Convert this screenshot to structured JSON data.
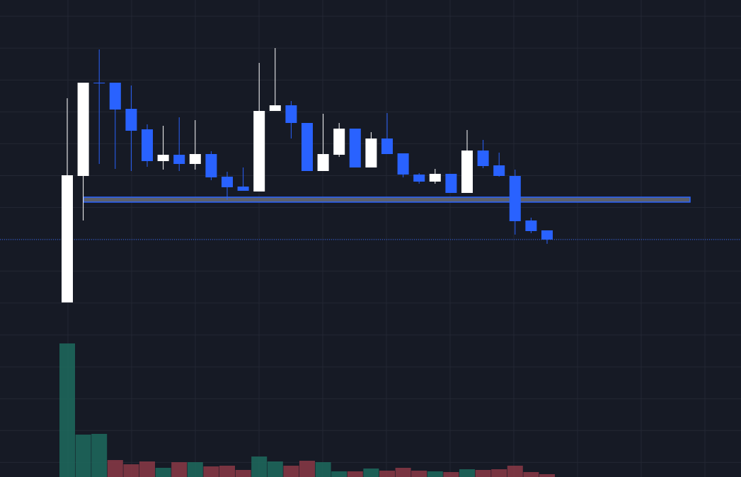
{
  "chart_data": {
    "type": "candlestick",
    "open": [
      2.2,
      20.1,
      33.3,
      33.3,
      29.6,
      26.7,
      22.2,
      23.1,
      21.8,
      23.2,
      20.0,
      18.6,
      17.9,
      29.3,
      30.1,
      27.6,
      20.8,
      23.1,
      26.8,
      21.3,
      25.4,
      23.3,
      20.3,
      19.3,
      20.4,
      17.7,
      23.7,
      21.6,
      20.1,
      13.8,
      12.4
    ],
    "high": [
      31.1,
      33.3,
      38.0,
      33.3,
      32.9,
      27.4,
      27.2,
      28.4,
      28.0,
      23.6,
      20.7,
      21.3,
      36.1,
      38.2,
      30.7,
      27.6,
      28.9,
      27.6,
      26.8,
      26.3,
      29.0,
      23.3,
      20.5,
      21.1,
      20.4,
      26.6,
      25.2,
      23.4,
      21.0,
      14.2,
      12.4
    ],
    "low": [
      2.2,
      13.8,
      21.8,
      21.1,
      20.8,
      21.4,
      21.0,
      20.8,
      21.0,
      19.5,
      16.7,
      18.0,
      17.9,
      29.3,
      25.4,
      20.8,
      20.8,
      22.8,
      21.3,
      21.3,
      23.2,
      19.9,
      19.0,
      19.0,
      17.7,
      17.7,
      21.2,
      20.0,
      11.8,
      12.0,
      10.5
    ],
    "close": [
      20.2,
      33.3,
      33.2,
      29.5,
      26.5,
      22.2,
      23.1,
      21.8,
      23.2,
      19.9,
      18.5,
      18.0,
      29.3,
      30.1,
      27.6,
      20.8,
      23.2,
      26.8,
      21.3,
      25.4,
      23.2,
      20.3,
      19.3,
      20.4,
      17.7,
      23.7,
      21.5,
      20.1,
      13.7,
      12.3,
      11.1
    ],
    "volume": [
      189,
      60,
      61,
      24,
      18,
      22,
      13,
      21,
      21,
      15,
      16,
      10,
      29,
      22,
      16,
      23,
      21,
      8,
      8,
      12,
      9,
      13,
      9,
      8,
      7,
      11,
      10,
      11,
      16,
      7,
      4
    ],
    "volume_colors": [
      "#1d6b5e",
      "#1d6b5e",
      "#1d6b5e",
      "#8b3a47",
      "#8b3a47",
      "#8b3a47",
      "#1d6b5e",
      "#8b3a47",
      "#1d6b5e",
      "#8b3a47",
      "#8b3a47",
      "#8b3a47",
      "#1d6b5e",
      "#1d6b5e",
      "#8b3a47",
      "#8b3a47",
      "#1d6b5e",
      "#1d6b5e",
      "#8b3a47",
      "#1d6b5e",
      "#8b3a47",
      "#8b3a47",
      "#8b3a47",
      "#1d6b5e",
      "#8b3a47",
      "#1d6b5e",
      "#8b3a47",
      "#8b3a47",
      "#8b3a47",
      "#8b3a47",
      "#8b3a47"
    ],
    "up_color": "#ffffff",
    "down_color": "#2962ff",
    "ylim": [
      0,
      45
    ],
    "volume_lim": [
      0,
      200
    ],
    "zone": [
      16.4,
      17.1
    ],
    "zone_color": "#2962ff"
  }
}
